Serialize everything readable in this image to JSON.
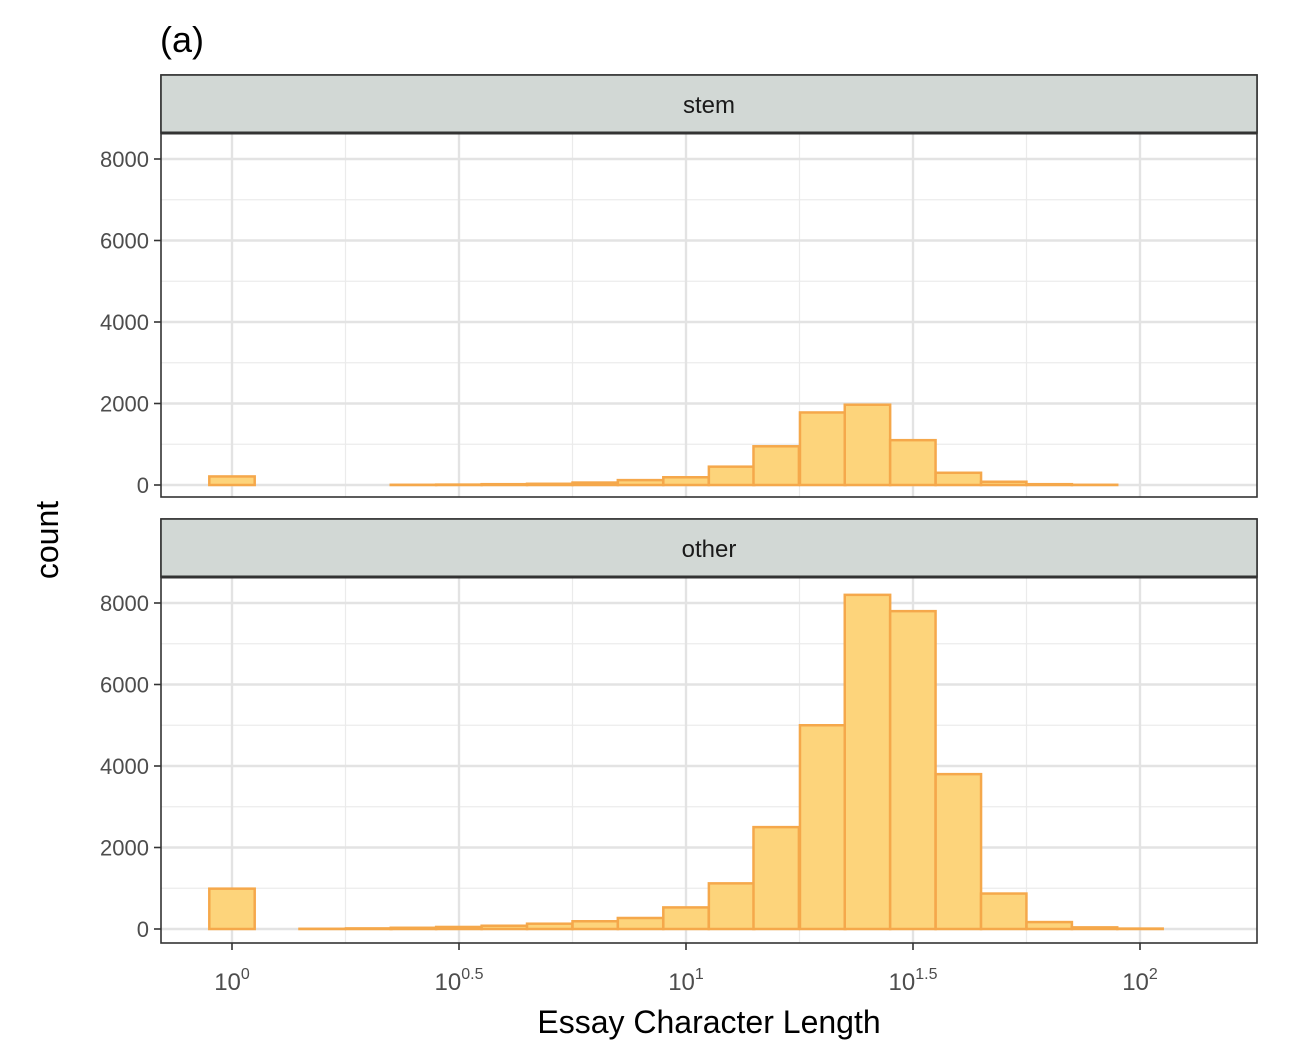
{
  "figure_label": "(a)",
  "chart_data": {
    "type": "bar",
    "subtype": "faceted-histogram",
    "x_scale": "log10",
    "xlabel": "Essay Character Length",
    "ylabel": "count",
    "xlim": [
      0.84,
      1.12
    ],
    "ylim": [
      0,
      9000
    ],
    "x_ticks": [
      {
        "value": 1,
        "base": "10",
        "exp": "0"
      },
      {
        "value": 3.1623,
        "base": "10",
        "exp": "0.5"
      },
      {
        "value": 10,
        "base": "10",
        "exp": "1"
      },
      {
        "value": 31.623,
        "base": "10",
        "exp": "1.5"
      },
      {
        "value": 100,
        "base": "10",
        "exp": "2"
      }
    ],
    "y_ticks": [
      "0",
      "2000",
      "4000",
      "6000",
      "8000"
    ],
    "bin_centers": [
      1,
      1.26,
      1.58,
      2.0,
      2.51,
      3.16,
      3.98,
      5.01,
      6.31,
      7.94,
      10.0,
      12.6,
      15.8,
      20.0,
      25.1,
      31.6,
      39.8,
      50.1,
      63.1,
      79.4,
      100,
      126
    ],
    "fill_color": "#fdd47b",
    "border_color": "#f5a84b",
    "strip_color": "#d2d8d5",
    "panels": [
      {
        "name": "stem",
        "values": [
          210,
          0,
          0,
          0,
          5,
          10,
          20,
          30,
          60,
          120,
          190,
          450,
          950,
          1780,
          1970,
          1100,
          300,
          80,
          20,
          5,
          0,
          0
        ]
      },
      {
        "name": "other",
        "values": [
          990,
          0,
          5,
          15,
          30,
          50,
          80,
          130,
          190,
          270,
          530,
          1120,
          2500,
          5000,
          8200,
          7800,
          3800,
          870,
          170,
          40,
          10,
          0
        ]
      }
    ]
  }
}
